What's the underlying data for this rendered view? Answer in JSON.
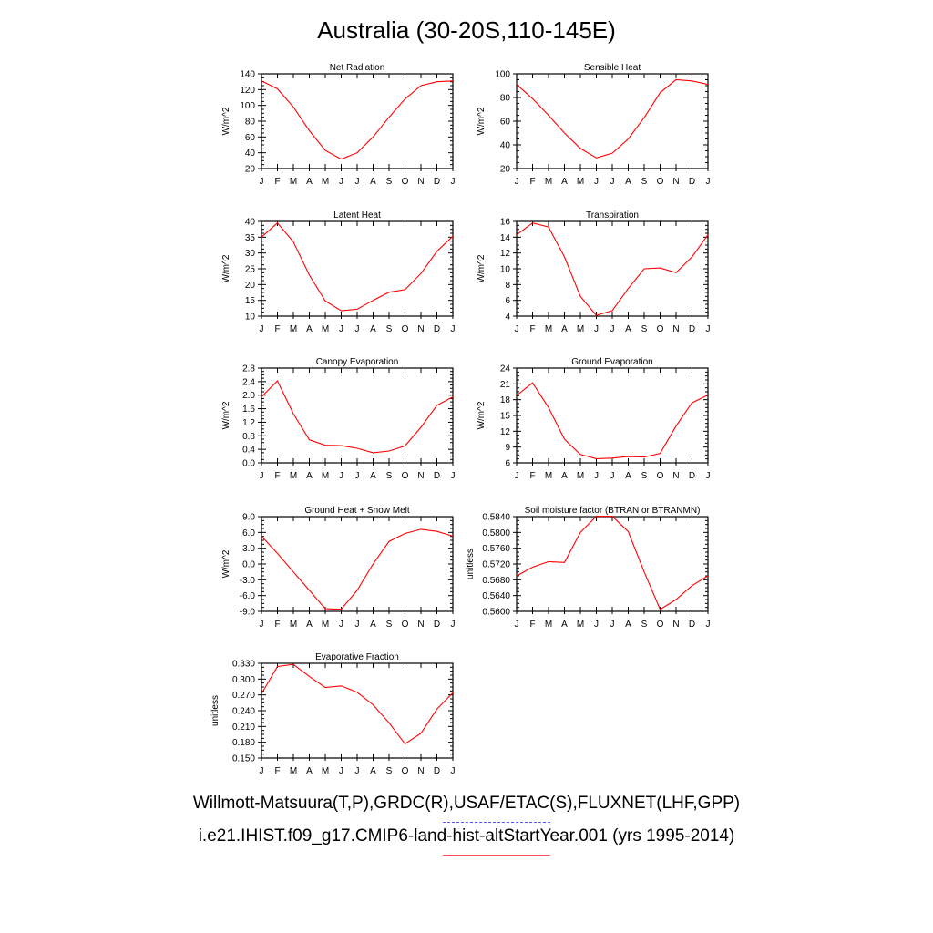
{
  "title": "Australia (30-20S,110-145E)",
  "legend": {
    "observed": "Willmott-Matsuura(T,P),GRDC(R),USAF/ETAC(S),FLUXNET(LHF,GPP)",
    "model": "i.e21.IHIST.f09_g17.CMIP6-land-hist-altStartYear.001 (yrs 1995-2014)",
    "observed_color": "#5555ff",
    "model_color": "#ff0000"
  },
  "chart_data": [
    {
      "type": "line",
      "title": "Net Radiation",
      "ylabel": "W/m^2",
      "categories": [
        "J",
        "F",
        "M",
        "A",
        "M",
        "J",
        "J",
        "A",
        "S",
        "O",
        "N",
        "D",
        "J"
      ],
      "ylim": [
        20,
        140
      ],
      "yticks": [
        "20",
        "40",
        "60",
        "80",
        "100",
        "120",
        "140"
      ],
      "series": [
        {
          "values": [
            131,
            121,
            98,
            68,
            43,
            32,
            40,
            60,
            85,
            108,
            125,
            130,
            131
          ]
        }
      ]
    },
    {
      "type": "line",
      "title": "Sensible Heat",
      "ylabel": "W/m^2",
      "categories": [
        "J",
        "F",
        "M",
        "A",
        "M",
        "J",
        "J",
        "A",
        "S",
        "O",
        "N",
        "D",
        "J"
      ],
      "ylim": [
        20,
        100
      ],
      "yticks": [
        "20",
        "40",
        "60",
        "80",
        "100"
      ],
      "series": [
        {
          "values": [
            91,
            79,
            65,
            50,
            37,
            29,
            33,
            45,
            63,
            84,
            95,
            94,
            91
          ]
        }
      ]
    },
    {
      "type": "line",
      "title": "Latent Heat",
      "ylabel": "W/m^2",
      "categories": [
        "J",
        "F",
        "M",
        "A",
        "M",
        "J",
        "J",
        "A",
        "S",
        "O",
        "N",
        "D",
        "J"
      ],
      "ylim": [
        10,
        40
      ],
      "yticks": [
        "10",
        "15",
        "20",
        "25",
        "30",
        "35",
        "40"
      ],
      "series": [
        {
          "values": [
            35,
            39.5,
            33.5,
            23,
            14.8,
            11.7,
            12.2,
            15,
            17.6,
            18.4,
            23.5,
            30.5,
            35.3
          ]
        }
      ]
    },
    {
      "type": "line",
      "title": "Transpiration",
      "ylabel": "W/m^2",
      "categories": [
        "J",
        "F",
        "M",
        "A",
        "M",
        "J",
        "J",
        "A",
        "S",
        "O",
        "N",
        "D",
        "J"
      ],
      "ylim": [
        4,
        16
      ],
      "yticks": [
        "4",
        "6",
        "8",
        "10",
        "12",
        "14",
        "16"
      ],
      "series": [
        {
          "values": [
            14.3,
            15.8,
            15.3,
            11.5,
            6.5,
            4.1,
            4.7,
            7.5,
            10,
            10.1,
            9.5,
            11.5,
            14.3
          ]
        }
      ]
    },
    {
      "type": "line",
      "title": "Canopy Evaporation",
      "ylabel": "W/m^2",
      "categories": [
        "J",
        "F",
        "M",
        "A",
        "M",
        "J",
        "J",
        "A",
        "S",
        "O",
        "N",
        "D",
        "J"
      ],
      "ylim": [
        0,
        2.8
      ],
      "yticks": [
        "0.0",
        "0.4",
        "0.8",
        "1.2",
        "1.6",
        "2.0",
        "2.4",
        "2.8"
      ],
      "series": [
        {
          "values": [
            1.95,
            2.42,
            1.45,
            0.68,
            0.52,
            0.51,
            0.43,
            0.3,
            0.35,
            0.5,
            1.05,
            1.7,
            1.95
          ]
        }
      ]
    },
    {
      "type": "line",
      "title": "Ground Evaporation",
      "ylabel": "W/m^2",
      "categories": [
        "J",
        "F",
        "M",
        "A",
        "M",
        "J",
        "J",
        "A",
        "S",
        "O",
        "N",
        "D",
        "J"
      ],
      "ylim": [
        6,
        24
      ],
      "yticks": [
        "6",
        "9",
        "12",
        "15",
        "18",
        "21",
        "24"
      ],
      "series": [
        {
          "values": [
            18.8,
            21.2,
            16.5,
            10.5,
            7.6,
            6.8,
            6.9,
            7.2,
            7.1,
            7.8,
            13,
            17.4,
            18.9
          ]
        }
      ]
    },
    {
      "type": "line",
      "title": "Ground Heat + Snow Melt",
      "ylabel": "W/m^2",
      "categories": [
        "J",
        "F",
        "M",
        "A",
        "M",
        "J",
        "J",
        "A",
        "S",
        "O",
        "N",
        "D",
        "J"
      ],
      "ylim": [
        -9,
        9
      ],
      "yticks": [
        "-9.0",
        "-6.0",
        "-3.0",
        "0.0",
        "3.0",
        "6.0",
        "9.0"
      ],
      "series": [
        {
          "values": [
            5.3,
            2.0,
            -1.5,
            -5.0,
            -8.5,
            -8.6,
            -5.0,
            0,
            4.3,
            5.8,
            6.6,
            6.2,
            5.3
          ]
        }
      ]
    },
    {
      "type": "line",
      "title": "Soil moisture factor (BTRAN or BTRANMN)",
      "ylabel": "unitless",
      "categories": [
        "J",
        "F",
        "M",
        "A",
        "M",
        "J",
        "J",
        "A",
        "S",
        "O",
        "N",
        "D",
        "J"
      ],
      "ylim": [
        0.56,
        0.584
      ],
      "yticks": [
        "0.5600",
        "0.5640",
        "0.5680",
        "0.5720",
        "0.5760",
        "0.5800",
        "0.5840"
      ],
      "series": [
        {
          "values": [
            0.569,
            0.5712,
            0.5726,
            0.5724,
            0.58,
            0.5841,
            0.5841,
            0.5802,
            0.57,
            0.5605,
            0.563,
            0.5665,
            0.569
          ]
        }
      ]
    },
    {
      "type": "line",
      "title": "Evaporative Fraction",
      "ylabel": "unitless",
      "categories": [
        "J",
        "F",
        "M",
        "A",
        "M",
        "J",
        "J",
        "A",
        "S",
        "O",
        "N",
        "D",
        "J"
      ],
      "ylim": [
        0.15,
        0.33
      ],
      "yticks": [
        "0.150",
        "0.180",
        "0.210",
        "0.240",
        "0.270",
        "0.300",
        "0.330"
      ],
      "series": [
        {
          "values": [
            0.272,
            0.324,
            0.328,
            0.305,
            0.284,
            0.287,
            0.275,
            0.251,
            0.217,
            0.177,
            0.197,
            0.243,
            0.274
          ]
        }
      ]
    }
  ]
}
